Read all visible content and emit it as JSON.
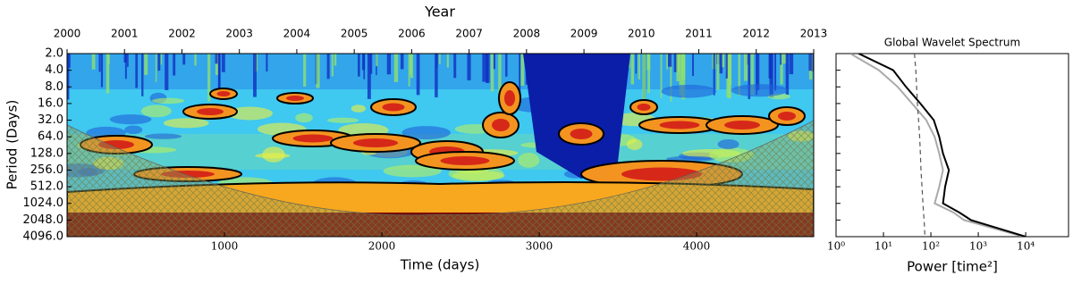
{
  "chart_data": [
    {
      "type": "wavelet",
      "x2_label": "Year",
      "x_label": "Time (days)",
      "y_label": "Period (Days)",
      "xlim": [
        0,
        4744
      ],
      "xticks": [
        1000,
        2000,
        3000,
        4000
      ],
      "x2lim": [
        2000,
        2013
      ],
      "x2ticks": [
        2000,
        2001,
        2002,
        2003,
        2004,
        2005,
        2006,
        2007,
        2008,
        2009,
        2010,
        2011,
        2012,
        2013
      ],
      "y_scale": "log",
      "y_inverted": true,
      "ylim": [
        2,
        4096
      ],
      "yticks": [
        {
          "value": 2,
          "label": "2.0"
        },
        {
          "value": 4,
          "label": "4.0"
        },
        {
          "value": 8,
          "label": "8.0"
        },
        {
          "value": 16,
          "label": "16.0"
        },
        {
          "value": 32,
          "label": "32.0"
        },
        {
          "value": 64,
          "label": "64.0"
        },
        {
          "value": 128,
          "label": "128.0"
        },
        {
          "value": 256,
          "label": "256.0"
        },
        {
          "value": 512,
          "label": "512.0"
        },
        {
          "value": 1024,
          "label": "1024.0"
        },
        {
          "value": 2048,
          "label": "2048.0"
        },
        {
          "value": 4096,
          "label": "4096.0"
        }
      ]
    },
    {
      "type": "line",
      "title": "Global Wavelet Spectrum",
      "x_label": "Power [time²]",
      "x_scale": "log",
      "xlim": [
        1,
        80000
      ],
      "xticks": [
        {
          "value": 1,
          "label": "10⁰"
        },
        {
          "value": 10,
          "label": "10¹"
        },
        {
          "value": 100,
          "label": "10²"
        },
        {
          "value": 1000,
          "label": "10³"
        },
        {
          "value": 10000,
          "label": "10⁴"
        }
      ],
      "y_scale": "log",
      "y_inverted": true,
      "ylim": [
        2,
        4096
      ],
      "yticks": [
        2,
        4,
        8,
        16,
        32,
        64,
        128,
        256,
        512,
        1024,
        2048,
        4096
      ],
      "periods": [
        2,
        4,
        8,
        16,
        32,
        64,
        128,
        256,
        512,
        1024,
        1500,
        2048,
        4096
      ],
      "series": [
        {
          "color": "#aaaaaa",
          "values": [
            2,
            8,
            20,
            40,
            80,
            120,
            150,
            180,
            150,
            120,
            300,
            500,
            9000
          ]
        },
        {
          "color": "#555555",
          "dashed": true,
          "values": [
            45,
            48,
            50,
            52,
            55,
            58,
            60,
            62,
            65,
            68,
            70,
            72,
            75
          ]
        },
        {
          "color": "#000000",
          "values": [
            3,
            16,
            30,
            60,
            115,
            150,
            180,
            240,
            200,
            180,
            400,
            700,
            10000
          ]
        }
      ]
    }
  ]
}
